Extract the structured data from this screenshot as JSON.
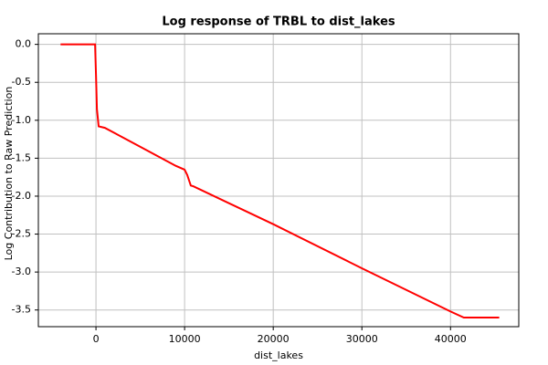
{
  "chart_data": {
    "type": "line",
    "title": "Log response of TRBL to dist_lakes",
    "xlabel": "dist_lakes",
    "ylabel": "Log Contribution to Raw Prediction",
    "x": [
      -4000,
      -100,
      0,
      100,
      300,
      1000,
      5000,
      9000,
      10000,
      10300,
      10700,
      11000,
      20000,
      30000,
      40000,
      41500,
      45500
    ],
    "series": [
      {
        "name": "dist_lakes",
        "color": "#ff0000",
        "values": [
          0,
          0,
          -0.4,
          -0.85,
          -1.08,
          -1.1,
          -1.35,
          -1.6,
          -1.65,
          -1.72,
          -1.86,
          -1.87,
          -2.37,
          -2.95,
          -3.52,
          -3.6,
          -3.6
        ]
      }
    ],
    "xlim": [
      -6500,
      47700
    ],
    "ylim": [
      -3.72,
      0.14
    ],
    "xticks": [
      0,
      10000,
      20000,
      30000,
      40000
    ],
    "yticks": [
      {
        "value": 0,
        "label": "0.0"
      },
      -0.5,
      {
        "value": -1,
        "label": "-1.0"
      },
      -1.5,
      {
        "value": -2,
        "label": "-2.0"
      },
      -2.5,
      {
        "value": -3,
        "label": "-3.0"
      },
      -3.5
    ],
    "grid": true
  }
}
